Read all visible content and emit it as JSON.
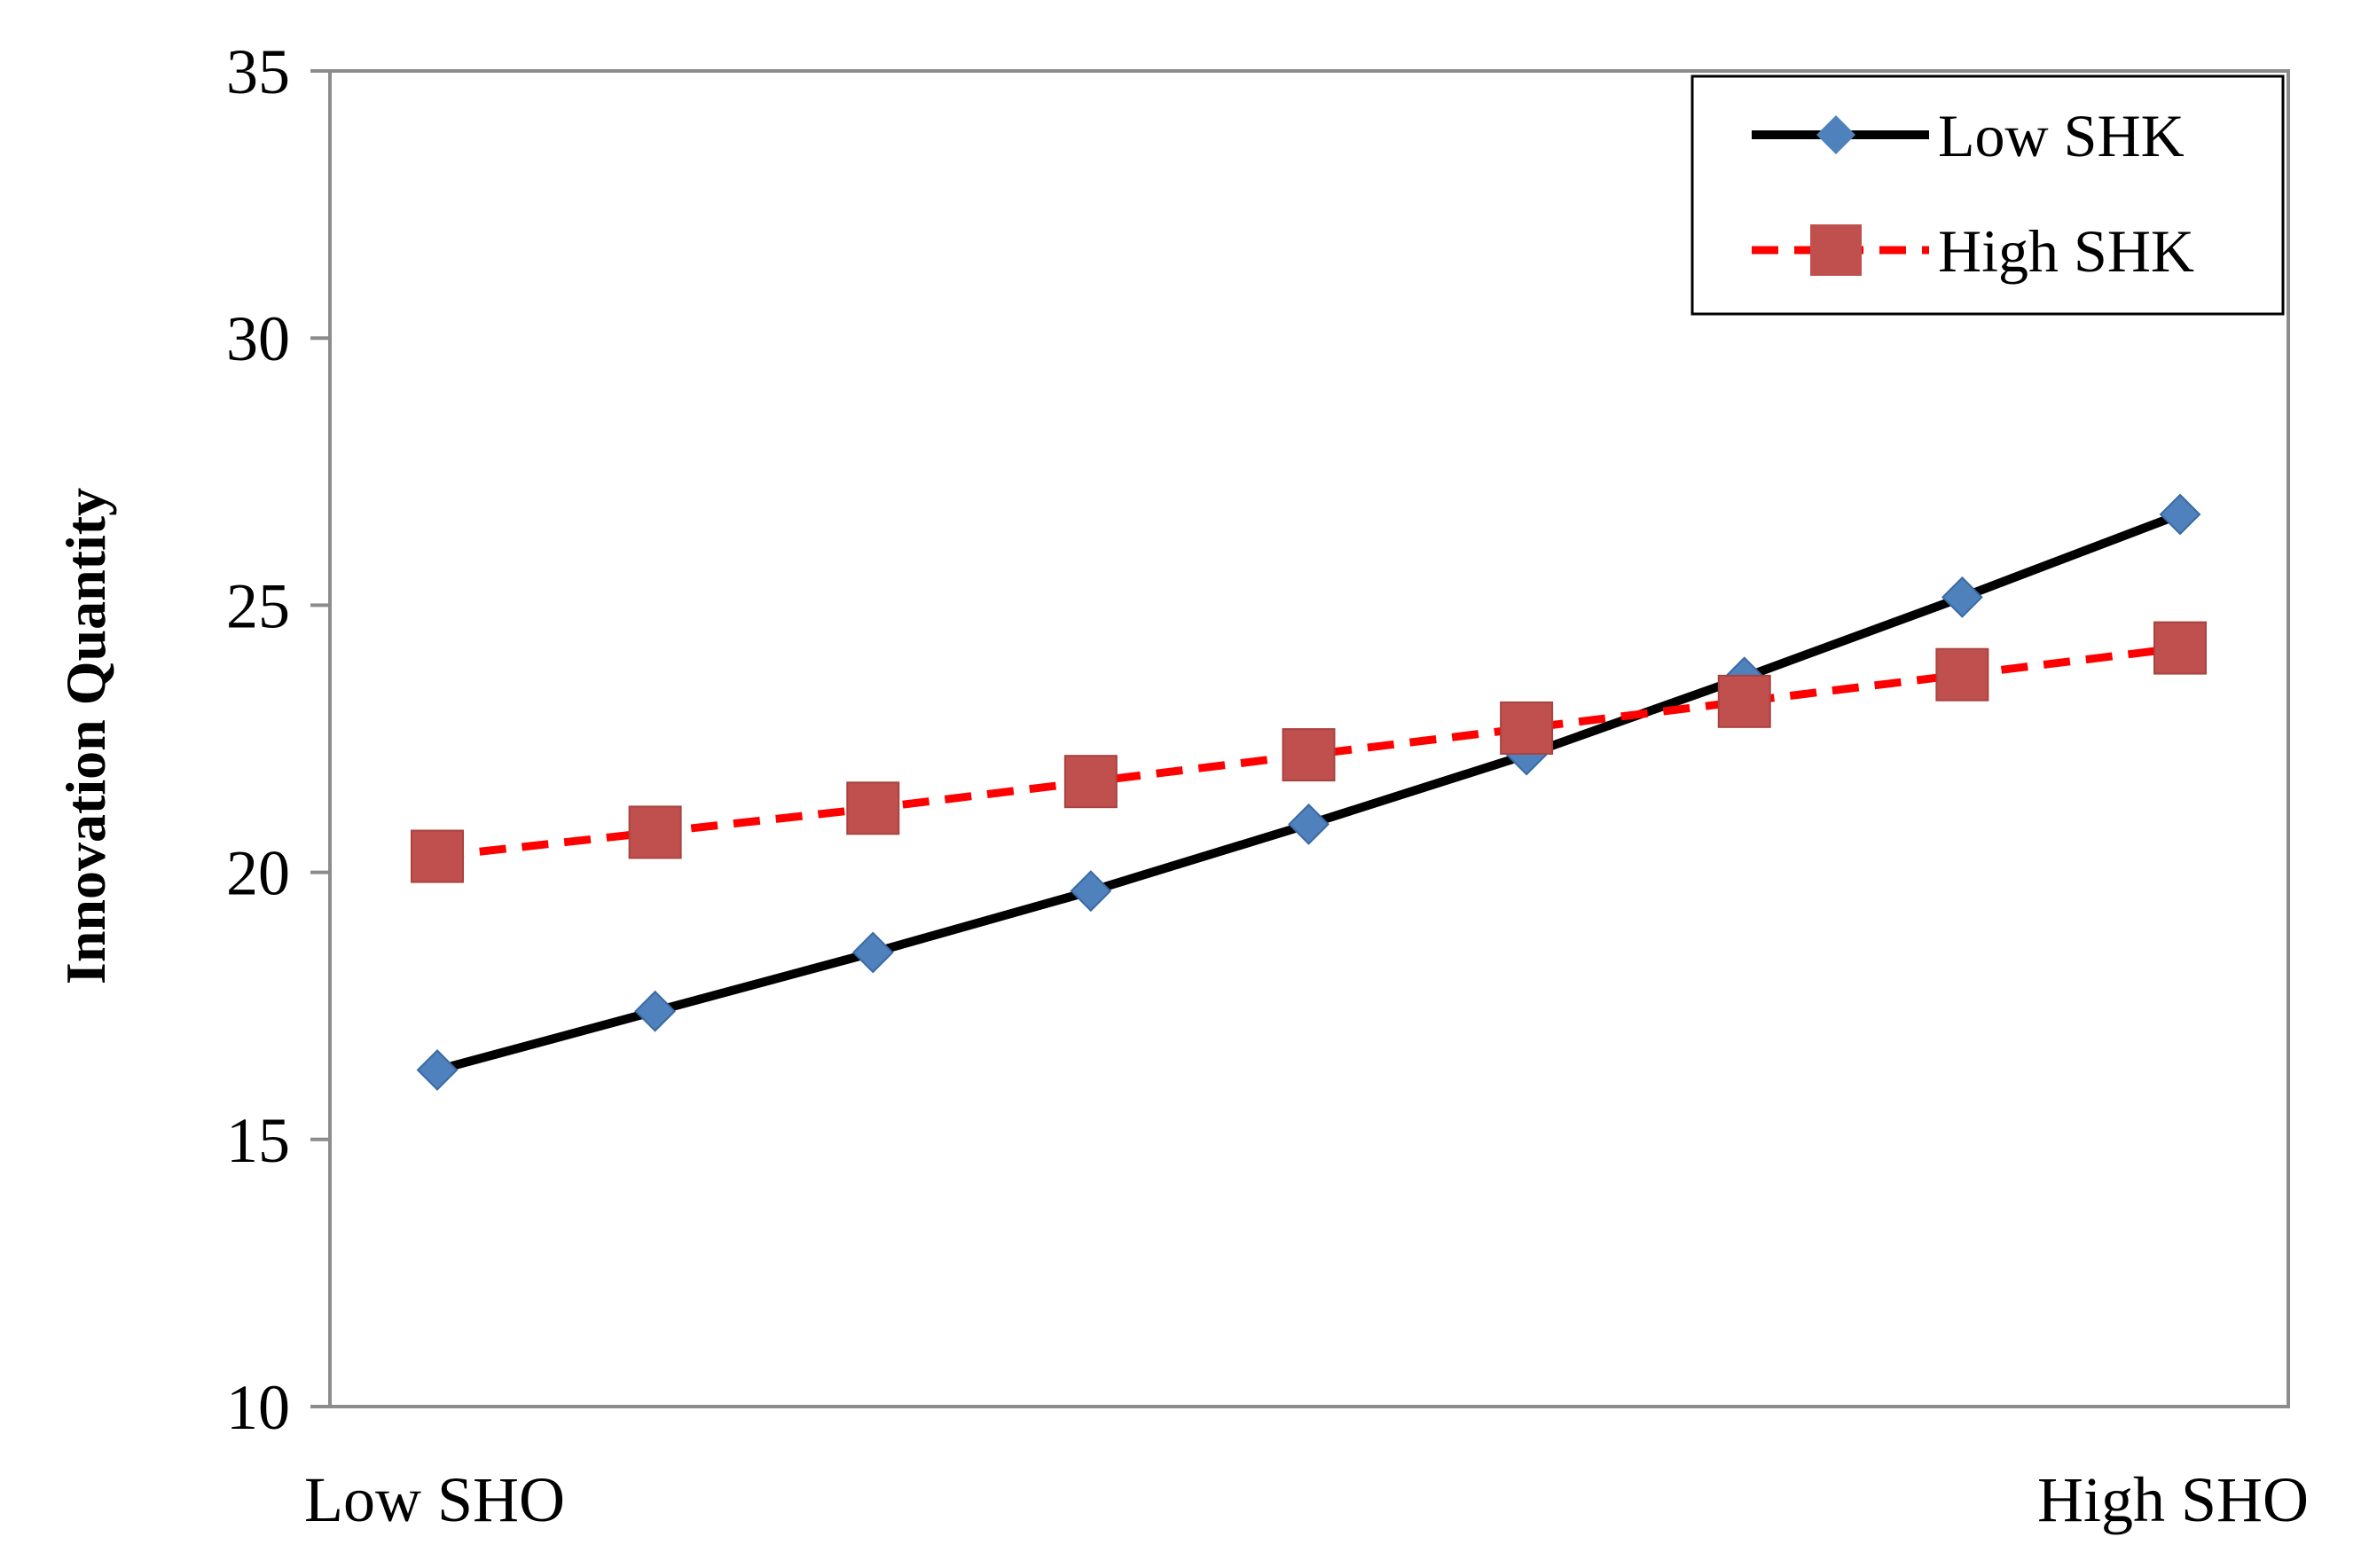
{
  "chart_data": {
    "type": "line",
    "title": "",
    "xlabel": "",
    "ylabel": "Innovation Quantity",
    "x_tick_labels": {
      "left": "Low SHO",
      "right": "High SHO"
    },
    "y_ticks": [
      "10",
      "15",
      "20",
      "25",
      "30",
      "35"
    ],
    "ylim": [
      10,
      35
    ],
    "x": [
      1,
      2,
      3,
      4,
      5,
      6,
      7,
      8,
      9
    ],
    "grid": false,
    "legend_position": "top-right",
    "series": [
      {
        "name": "Low SHK",
        "values": [
          16.3,
          17.4,
          18.5,
          19.65,
          20.9,
          22.2,
          23.65,
          25.15,
          26.7
        ],
        "line_color": "#000000",
        "line_style": "solid",
        "marker": "diamond",
        "marker_color": "#4F81BD"
      },
      {
        "name": "High SHK",
        "values": [
          20.3,
          20.75,
          21.2,
          21.7,
          22.2,
          22.7,
          23.2,
          23.7,
          24.2
        ],
        "line_color": "#FF0000",
        "line_style": "dashed",
        "marker": "square",
        "marker_color": "#C0504D"
      }
    ]
  }
}
